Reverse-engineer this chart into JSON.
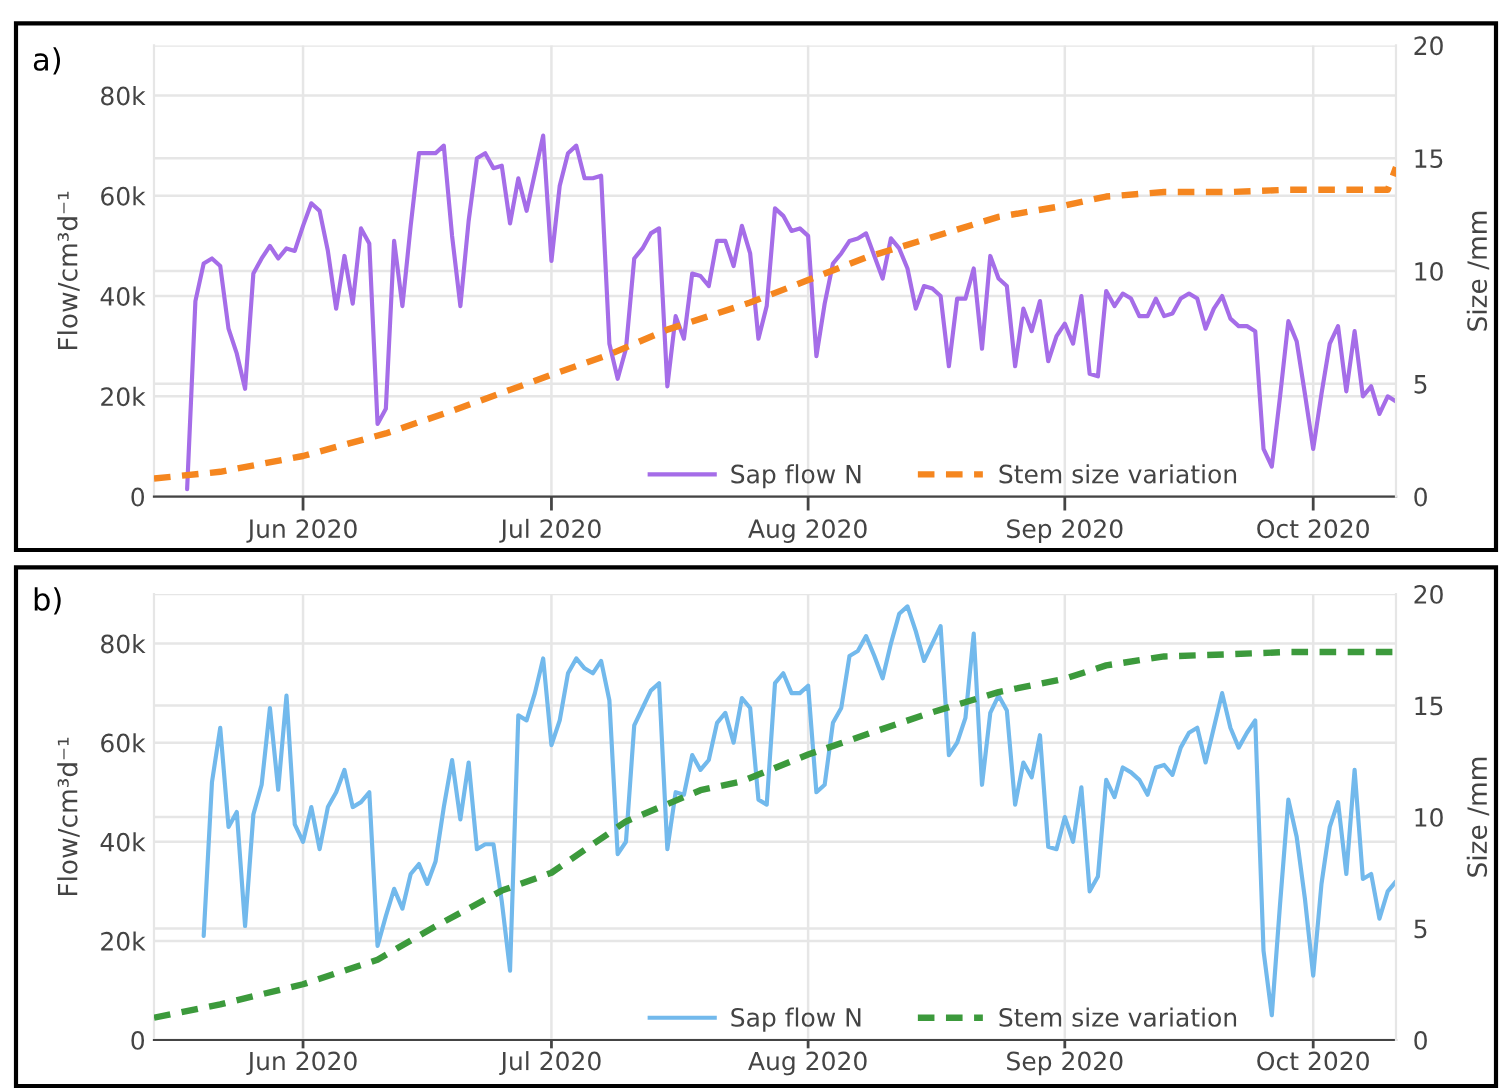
{
  "chart_data": [
    {
      "type": "line",
      "title": "a)",
      "ylabel": "Flow/cm³d⁻¹",
      "y2label": "Size /mm",
      "xlim": [
        "2020-05-14",
        "2020-10-11"
      ],
      "xticks": [
        {
          "value": "2020-06-01",
          "label": "Jun 2020"
        },
        {
          "value": "2020-07-01",
          "label": "Jul 2020"
        },
        {
          "value": "2020-08-01",
          "label": "Aug 2020"
        },
        {
          "value": "2020-09-01",
          "label": "Sep 2020"
        },
        {
          "value": "2020-10-01",
          "label": "Oct 2020"
        }
      ],
      "ylim": [
        0,
        90000
      ],
      "yticks": [
        0,
        {
          "value": 20000,
          "label": "20k"
        },
        {
          "value": 40000,
          "label": "40k"
        },
        {
          "value": 60000,
          "label": "60k"
        },
        {
          "value": 80000,
          "label": "80k"
        }
      ],
      "y2lim": [
        0,
        20
      ],
      "y2ticks": [
        0,
        5,
        10,
        15,
        20
      ],
      "grid": true,
      "legend": "bottom right",
      "x": [
        "2020-05-18",
        "2020-05-19",
        "2020-05-20",
        "2020-05-21",
        "2020-05-22",
        "2020-05-23",
        "2020-05-24",
        "2020-05-25",
        "2020-05-26",
        "2020-05-27",
        "2020-05-28",
        "2020-05-29",
        "2020-05-30",
        "2020-05-31",
        "2020-06-01",
        "2020-06-02",
        "2020-06-03",
        "2020-06-04",
        "2020-06-05",
        "2020-06-06",
        "2020-06-07",
        "2020-06-08",
        "2020-06-09",
        "2020-06-10",
        "2020-06-11",
        "2020-06-12",
        "2020-06-13",
        "2020-06-14",
        "2020-06-15",
        "2020-06-16",
        "2020-06-17",
        "2020-06-18",
        "2020-06-19",
        "2020-06-20",
        "2020-06-21",
        "2020-06-22",
        "2020-06-23",
        "2020-06-24",
        "2020-06-25",
        "2020-06-26",
        "2020-06-27",
        "2020-06-28",
        "2020-06-29",
        "2020-06-30",
        "2020-07-01",
        "2020-07-02",
        "2020-07-03",
        "2020-07-04",
        "2020-07-05",
        "2020-07-06",
        "2020-07-07",
        "2020-07-08",
        "2020-07-09",
        "2020-07-10",
        "2020-07-11",
        "2020-07-12",
        "2020-07-13",
        "2020-07-14",
        "2020-07-15",
        "2020-07-16",
        "2020-07-17",
        "2020-07-18",
        "2020-07-19",
        "2020-07-20",
        "2020-07-21",
        "2020-07-22",
        "2020-07-23",
        "2020-07-24",
        "2020-07-25",
        "2020-07-26",
        "2020-07-27",
        "2020-07-28",
        "2020-07-29",
        "2020-07-30",
        "2020-07-31",
        "2020-08-01",
        "2020-08-02",
        "2020-08-03",
        "2020-08-04",
        "2020-08-05",
        "2020-08-06",
        "2020-08-07",
        "2020-08-08",
        "2020-08-09",
        "2020-08-10",
        "2020-08-11",
        "2020-08-12",
        "2020-08-13",
        "2020-08-14",
        "2020-08-15",
        "2020-08-16",
        "2020-08-17",
        "2020-08-18",
        "2020-08-19",
        "2020-08-20",
        "2020-08-21",
        "2020-08-22",
        "2020-08-23",
        "2020-08-24",
        "2020-08-25",
        "2020-08-26",
        "2020-08-27",
        "2020-08-28",
        "2020-08-29",
        "2020-08-30",
        "2020-08-31",
        "2020-09-01",
        "2020-09-02",
        "2020-09-03",
        "2020-09-04",
        "2020-09-05",
        "2020-09-06",
        "2020-09-07",
        "2020-09-08",
        "2020-09-09",
        "2020-09-10",
        "2020-09-11",
        "2020-09-12",
        "2020-09-13",
        "2020-09-14",
        "2020-09-15",
        "2020-09-16",
        "2020-09-17",
        "2020-09-18",
        "2020-09-19",
        "2020-09-20",
        "2020-09-21",
        "2020-09-22",
        "2020-09-23",
        "2020-09-24",
        "2020-09-25",
        "2020-09-26",
        "2020-09-27",
        "2020-09-28",
        "2020-09-29",
        "2020-09-30",
        "2020-10-01",
        "2020-10-02",
        "2020-10-03",
        "2020-10-04",
        "2020-10-05",
        "2020-10-06",
        "2020-10-07",
        "2020-10-08",
        "2020-10-09",
        "2020-10-10",
        "2020-10-11"
      ],
      "series": [
        {
          "name": "Sap flow N",
          "color": "#a56de8",
          "line_style": "solid",
          "values": [
            1500,
            39000,
            46500,
            47500,
            46000,
            33500,
            28500,
            21500,
            44500,
            47500,
            50000,
            47500,
            49500,
            49000,
            54000,
            58500,
            57000,
            49000,
            37500,
            48000,
            38500,
            53500,
            50500,
            14500,
            17500,
            51000,
            38000,
            54000,
            68500,
            68500,
            68500,
            70000,
            52000,
            38000,
            55000,
            67500,
            68500,
            65500,
            66000,
            54500,
            63500,
            57000,
            64500,
            72000,
            47000,
            62000,
            68500,
            70000,
            63500,
            63500,
            64000,
            30500,
            23500,
            29500,
            47500,
            49500,
            52500,
            53500,
            22000,
            36000,
            31500,
            44500,
            44000,
            42000,
            51000,
            51000,
            46000,
            54000,
            48500,
            31500,
            38000,
            57500,
            56000,
            53000,
            53500,
            52000,
            28000,
            38500,
            46500,
            48500,
            51000,
            51500,
            52500,
            48000,
            43500,
            51500,
            49500,
            45500,
            37500,
            42000,
            41500,
            40000,
            26000,
            39500,
            39500,
            45500,
            29500,
            48000,
            43500,
            42000,
            26000,
            37500,
            33000,
            39000,
            27000,
            32000,
            34500,
            30500,
            40000,
            24500,
            24000,
            41000,
            38000,
            40500,
            39500,
            36000,
            36000,
            39500,
            36000,
            36500,
            39500,
            40500,
            39500,
            33500,
            37500,
            40000,
            35500,
            34000,
            34000,
            33000,
            9500,
            6000,
            20000,
            35000,
            31000,
            20500,
            9500,
            20500,
            30500,
            34000,
            21000,
            33000,
            20000,
            22000,
            16500,
            20000,
            19000
          ]
        },
        {
          "name": "Stem size variation",
          "color": "#f5861f",
          "line_style": "dashed",
          "axis": "y2",
          "x": [
            "2020-05-14",
            "2020-05-22",
            "2020-06-01",
            "2020-06-11",
            "2020-06-19",
            "2020-06-25",
            "2020-07-01",
            "2020-07-08",
            "2020-07-15",
            "2020-07-25",
            "2020-08-01",
            "2020-08-08",
            "2020-08-16",
            "2020-08-24",
            "2020-09-01",
            "2020-09-06",
            "2020-09-13",
            "2020-09-21",
            "2020-09-28",
            "2020-10-10",
            "2020-10-11"
          ],
          "values": [
            0.8,
            1.1,
            1.8,
            2.8,
            3.8,
            4.6,
            5.4,
            6.3,
            7.4,
            8.6,
            9.6,
            10.6,
            11.5,
            12.4,
            12.9,
            13.3,
            13.5,
            13.5,
            13.6,
            13.6,
            14.6
          ]
        }
      ]
    },
    {
      "type": "line",
      "title": "b)",
      "ylabel": "Flow/cm³d⁻¹",
      "y2label": "Size /mm",
      "xlim": [
        "2020-05-14",
        "2020-10-11"
      ],
      "xticks": [
        {
          "value": "2020-06-01",
          "label": "Jun 2020"
        },
        {
          "value": "2020-07-01",
          "label": "Jul 2020"
        },
        {
          "value": "2020-08-01",
          "label": "Aug 2020"
        },
        {
          "value": "2020-09-01",
          "label": "Sep 2020"
        },
        {
          "value": "2020-10-01",
          "label": "Oct 2020"
        }
      ],
      "ylim": [
        0,
        90000
      ],
      "yticks": [
        0,
        {
          "value": 20000,
          "label": "20k"
        },
        {
          "value": 40000,
          "label": "40k"
        },
        {
          "value": 60000,
          "label": "60k"
        },
        {
          "value": 80000,
          "label": "80k"
        }
      ],
      "y2lim": [
        0,
        20
      ],
      "y2ticks": [
        0,
        5,
        10,
        15,
        20
      ],
      "grid": true,
      "legend": "bottom right",
      "x": [
        "2020-05-20",
        "2020-05-21",
        "2020-05-22",
        "2020-05-23",
        "2020-05-24",
        "2020-05-25",
        "2020-05-26",
        "2020-05-27",
        "2020-05-28",
        "2020-05-29",
        "2020-05-30",
        "2020-05-31",
        "2020-06-01",
        "2020-06-02",
        "2020-06-03",
        "2020-06-04",
        "2020-06-05",
        "2020-06-06",
        "2020-06-07",
        "2020-06-08",
        "2020-06-09",
        "2020-06-10",
        "2020-06-11",
        "2020-06-12",
        "2020-06-13",
        "2020-06-14",
        "2020-06-15",
        "2020-06-16",
        "2020-06-17",
        "2020-06-18",
        "2020-06-19",
        "2020-06-20",
        "2020-06-21",
        "2020-06-22",
        "2020-06-23",
        "2020-06-24",
        "2020-06-25",
        "2020-06-26",
        "2020-06-27",
        "2020-06-28",
        "2020-06-29",
        "2020-06-30",
        "2020-07-01",
        "2020-07-02",
        "2020-07-03",
        "2020-07-04",
        "2020-07-05",
        "2020-07-06",
        "2020-07-07",
        "2020-07-08",
        "2020-07-09",
        "2020-07-10",
        "2020-07-11",
        "2020-07-12",
        "2020-07-13",
        "2020-07-14",
        "2020-07-15",
        "2020-07-16",
        "2020-07-17",
        "2020-07-18",
        "2020-07-19",
        "2020-07-20",
        "2020-07-21",
        "2020-07-22",
        "2020-07-23",
        "2020-07-24",
        "2020-07-25",
        "2020-07-26",
        "2020-07-27",
        "2020-07-28",
        "2020-07-29",
        "2020-07-30",
        "2020-07-31",
        "2020-08-01",
        "2020-08-02",
        "2020-08-03",
        "2020-08-04",
        "2020-08-05",
        "2020-08-06",
        "2020-08-07",
        "2020-08-08",
        "2020-08-09",
        "2020-08-10",
        "2020-08-11",
        "2020-08-12",
        "2020-08-13",
        "2020-08-14",
        "2020-08-15",
        "2020-08-16",
        "2020-08-17",
        "2020-08-18",
        "2020-08-19",
        "2020-08-20",
        "2020-08-21",
        "2020-08-22",
        "2020-08-23",
        "2020-08-24",
        "2020-08-25",
        "2020-08-26",
        "2020-08-27",
        "2020-08-28",
        "2020-08-29",
        "2020-08-30",
        "2020-08-31",
        "2020-09-01",
        "2020-09-02",
        "2020-09-03",
        "2020-09-04",
        "2020-09-05",
        "2020-09-06",
        "2020-09-07",
        "2020-09-08",
        "2020-09-09",
        "2020-09-10",
        "2020-09-11",
        "2020-09-12",
        "2020-09-13",
        "2020-09-14",
        "2020-09-15",
        "2020-09-16",
        "2020-09-17",
        "2020-09-18",
        "2020-09-19",
        "2020-09-20",
        "2020-09-21",
        "2020-09-22",
        "2020-09-23",
        "2020-09-24",
        "2020-09-25",
        "2020-09-26",
        "2020-09-27",
        "2020-09-28",
        "2020-09-29",
        "2020-09-30",
        "2020-10-01",
        "2020-10-02",
        "2020-10-03",
        "2020-10-04",
        "2020-10-05",
        "2020-10-06",
        "2020-10-07",
        "2020-10-08",
        "2020-10-09",
        "2020-10-10",
        "2020-10-11"
      ],
      "series": [
        {
          "name": "Sap flow N",
          "color": "#72b9ec",
          "line_style": "solid",
          "values": [
            21000,
            52000,
            63000,
            43000,
            46000,
            23000,
            45500,
            51500,
            67000,
            50500,
            69500,
            43500,
            40000,
            47000,
            38500,
            47000,
            50000,
            54500,
            47000,
            48000,
            50000,
            19000,
            25000,
            30500,
            26500,
            33500,
            35500,
            31500,
            36000,
            47000,
            56500,
            44500,
            56000,
            38500,
            39500,
            39500,
            28000,
            14000,
            65500,
            64500,
            70000,
            77000,
            59500,
            64500,
            74000,
            77000,
            75000,
            74000,
            76500,
            68500,
            37500,
            40000,
            63500,
            67000,
            70500,
            72000,
            38500,
            50000,
            49500,
            57500,
            54500,
            56500,
            64000,
            66000,
            60000,
            69000,
            67000,
            48500,
            47500,
            72000,
            74000,
            70000,
            70000,
            71500,
            50000,
            51500,
            64000,
            67000,
            77500,
            78500,
            81500,
            77500,
            73000,
            80000,
            86000,
            87500,
            82500,
            76500,
            80000,
            83500,
            57500,
            60000,
            65000,
            82000,
            51500,
            66000,
            69500,
            66500,
            47500,
            56000,
            53000,
            61500,
            39000,
            38500,
            45000,
            40000,
            51000,
            30000,
            33000,
            52500,
            49000,
            55000,
            54000,
            52500,
            49500,
            55000,
            55500,
            53500,
            59000,
            62000,
            63000,
            56000,
            63000,
            70000,
            63000,
            59000,
            62000,
            64500,
            18000,
            5000,
            27500,
            48500,
            41000,
            28500,
            13000,
            31500,
            43000,
            48000,
            33500,
            54500,
            32500,
            33500,
            24500,
            30000,
            32000
          ]
        },
        {
          "name": "Stem size variation",
          "color": "#3c9a3c",
          "line_style": "dashed",
          "axis": "y2",
          "x": [
            "2020-05-14",
            "2020-05-22",
            "2020-06-01",
            "2020-06-10",
            "2020-06-17",
            "2020-06-25",
            "2020-07-01",
            "2020-07-10",
            "2020-07-19",
            "2020-07-24",
            "2020-08-01",
            "2020-08-08",
            "2020-08-16",
            "2020-08-24",
            "2020-09-01",
            "2020-09-06",
            "2020-09-13",
            "2020-09-21",
            "2020-09-28",
            "2020-10-11"
          ],
          "values": [
            1.0,
            1.6,
            2.5,
            3.6,
            5.1,
            6.7,
            7.5,
            9.8,
            11.2,
            11.6,
            12.8,
            13.7,
            14.7,
            15.6,
            16.2,
            16.8,
            17.2,
            17.3,
            17.4,
            17.4
          ]
        }
      ]
    }
  ]
}
